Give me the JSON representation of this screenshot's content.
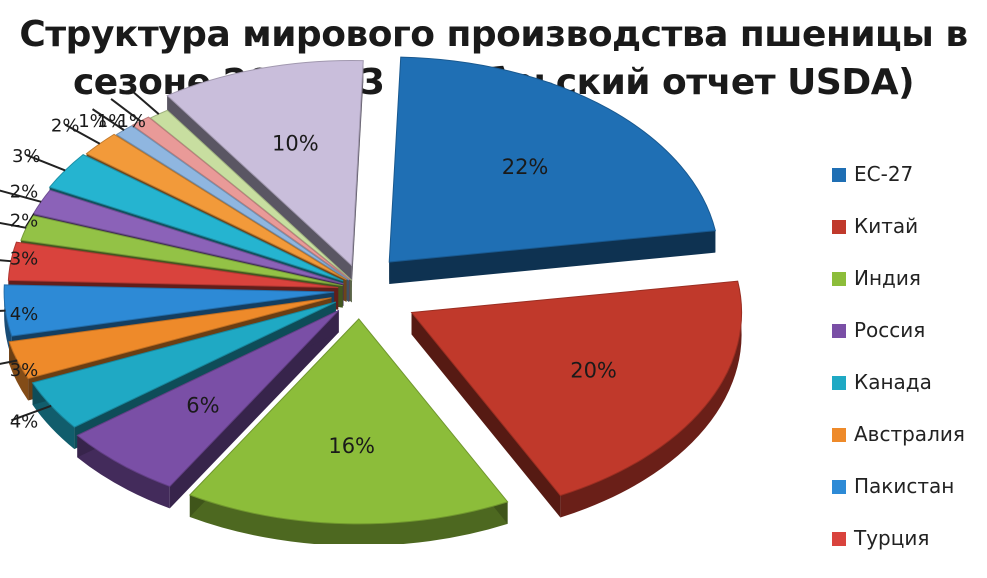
{
  "chart_data": {
    "type": "pie",
    "title_line1": "Структура мирового производства пшеницы в",
    "title_line2": "сезоне 2012-13 (ноябрьский отчет USDA)",
    "legend_placement": "right",
    "slices": [
      {
        "name": "ЕС-27",
        "value": 22,
        "label": "22%",
        "color": "#1f6fb4"
      },
      {
        "name": "Китай",
        "value": 20,
        "label": "20%",
        "color": "#c0392b"
      },
      {
        "name": "Индия",
        "value": 16,
        "label": "16%",
        "color": "#8cbd3a"
      },
      {
        "name": "Россия",
        "value": 6,
        "label": "6%",
        "color": "#7a4fa6"
      },
      {
        "name": "Канада",
        "value": 4,
        "label": "4%",
        "color": "#1fa9c4"
      },
      {
        "name": "Австралия",
        "value": 3,
        "label": "3%",
        "color": "#ee8a2a"
      },
      {
        "name": "Пакистан",
        "value": 4,
        "label": "4%",
        "color": "#2d8ad6"
      },
      {
        "name": "Турция",
        "value": 3,
        "label": "3%",
        "color": "#d9433d"
      },
      {
        "value": 2,
        "label": "2%",
        "color": "#93c246"
      },
      {
        "value": 2,
        "label": "2%",
        "color": "#8b62b8"
      },
      {
        "value": 3,
        "label": "3%",
        "color": "#25b4d0"
      },
      {
        "value": 2,
        "label": "2%",
        "color": "#f29a3a"
      },
      {
        "value": 1,
        "label": "1%",
        "color": "#8fb6e0"
      },
      {
        "value": 1,
        "label": "1%",
        "color": "#e99a98"
      },
      {
        "value": 1,
        "label": "1%",
        "color": "#c8dea0"
      },
      {
        "value": 10,
        "label": "10%",
        "color": "#c9bedb"
      }
    ]
  }
}
